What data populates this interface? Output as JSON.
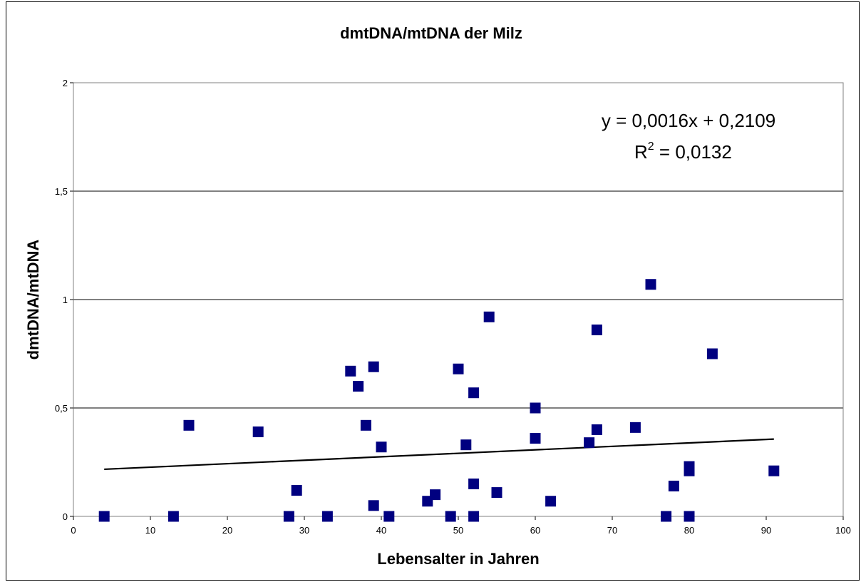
{
  "chart_data": {
    "type": "scatter",
    "title": "dmtDNA/mtDNA der Milz",
    "xlabel": "Lebensalter in Jahren",
    "ylabel": "dmtDNA/mtDNA",
    "xlim": [
      0,
      100
    ],
    "ylim": [
      0,
      2
    ],
    "x_ticks": [
      "0",
      "10",
      "20",
      "30",
      "40",
      "50",
      "60",
      "70",
      "80",
      "90",
      "100"
    ],
    "y_ticks": [
      "0",
      "0,5",
      "1",
      "1,5",
      "2"
    ],
    "grid": "horizontal",
    "legend": "none",
    "marker_color": "#000080",
    "trendline_color": "#000000",
    "series": [
      {
        "x": [
          4,
          13,
          15,
          24,
          28,
          29,
          33,
          36,
          37,
          38,
          39,
          39,
          40,
          41,
          46,
          47,
          49,
          50,
          51,
          52,
          52,
          52,
          54,
          55,
          60,
          60,
          62,
          67,
          68,
          68,
          73,
          75,
          77,
          78,
          80,
          80,
          80,
          83,
          91
        ],
        "y": [
          0,
          0,
          0.42,
          0.39,
          0,
          0.12,
          0,
          0.67,
          0.6,
          0.42,
          0.05,
          0.69,
          0.32,
          0,
          0.07,
          0.1,
          0,
          0.68,
          0.33,
          0.57,
          0.15,
          0,
          0.92,
          0.11,
          0.5,
          0.36,
          0.07,
          0.34,
          0.4,
          0.86,
          0.41,
          1.07,
          0,
          0.14,
          0.23,
          0.21,
          0,
          0.75,
          0.21
        ]
      }
    ],
    "trendline": {
      "slope": 0.0016,
      "intercept": 0.2109,
      "x_range": [
        4,
        91
      ],
      "equation": "y = 0,0016x + 0,2109",
      "r2_prefix": "R",
      "r2_exponent": "2",
      "r2_value": " = 0,0132"
    }
  }
}
